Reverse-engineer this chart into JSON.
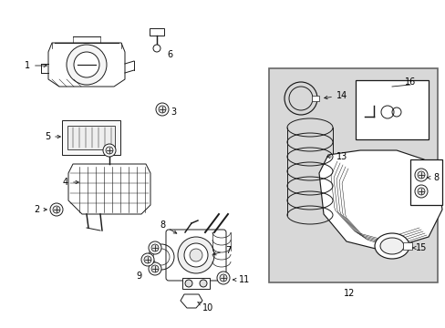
{
  "bg_color": "#ffffff",
  "line_color": "#1a1a1a",
  "box_fill": "#d8d8d8",
  "fig_width": 4.89,
  "fig_height": 3.6,
  "dpi": 100,
  "label_fs": 7.0,
  "lw": 0.7
}
